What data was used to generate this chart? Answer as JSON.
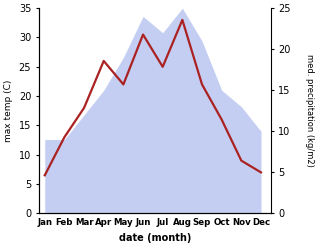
{
  "months": [
    "Jan",
    "Feb",
    "Mar",
    "Apr",
    "May",
    "Jun",
    "Jul",
    "Aug",
    "Sep",
    "Oct",
    "Nov",
    "Dec"
  ],
  "month_x": [
    1,
    2,
    3,
    4,
    5,
    6,
    7,
    8,
    9,
    10,
    11,
    12
  ],
  "temperature": [
    6.5,
    13.0,
    18.0,
    26.0,
    22.0,
    30.5,
    25.0,
    33.0,
    22.0,
    16.0,
    9.0,
    7.0
  ],
  "precipitation": [
    9,
    9,
    12,
    15,
    19,
    24,
    22,
    25,
    21,
    15,
    13,
    10
  ],
  "temp_ylim": [
    0,
    35
  ],
  "precip_ylim": [
    0,
    25
  ],
  "temp_color": "#aa2222",
  "precip_fill_color": "#b0beee",
  "precip_fill_alpha": 0.75,
  "xlabel": "date (month)",
  "ylabel_left": "max temp (C)",
  "ylabel_right": "med. precipitation (kg/m2)",
  "bg_color": "#ffffff",
  "left_ticks": [
    0,
    5,
    10,
    15,
    20,
    25,
    30,
    35
  ],
  "right_ticks": [
    0,
    5,
    10,
    15,
    20,
    25
  ]
}
